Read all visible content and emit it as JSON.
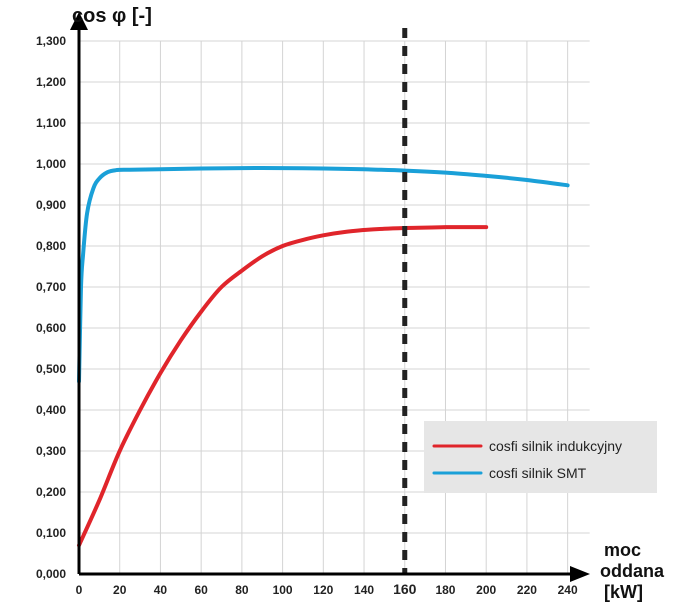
{
  "chart_data": {
    "type": "line",
    "ylabel": "cos φ [-]",
    "xlabel_lines": [
      "moc",
      "oddana",
      "[kW]"
    ],
    "x_ticks": [
      0,
      20,
      40,
      60,
      80,
      100,
      120,
      140,
      160,
      180,
      200,
      220,
      240
    ],
    "x_tick_labels": [
      "0",
      "20",
      "40",
      "60",
      "80",
      "100",
      "120",
      "140",
      "160",
      "180",
      "200",
      "220",
      "240"
    ],
    "y_ticks": [
      0,
      0.1,
      0.2,
      0.3,
      0.4,
      0.5,
      0.6,
      0.7,
      0.8,
      0.9,
      1.0,
      1.1,
      1.2,
      1.3
    ],
    "y_tick_labels": [
      "0,000",
      "0,100",
      "0,200",
      "0,300",
      "0,400",
      "0,500",
      "0,600",
      "0,700",
      "0,800",
      "0,900",
      "1,000",
      "1,100",
      "1,200",
      "1,300"
    ],
    "xlim": [
      0,
      250
    ],
    "ylim": [
      0,
      1.3
    ],
    "grid": true,
    "reference_line": {
      "x": 160,
      "style": "dashed",
      "color": "#222222"
    },
    "highlight_tick": "160",
    "legend_position": "lower-right",
    "series": [
      {
        "name": "cosfi silnik indukcyjny",
        "color": "#e0252b",
        "x": [
          0,
          10,
          20,
          30,
          40,
          50,
          60,
          70,
          80,
          90,
          100,
          110,
          120,
          130,
          140,
          150,
          160,
          170,
          180,
          190,
          200
        ],
        "y": [
          0.07,
          0.18,
          0.3,
          0.4,
          0.49,
          0.57,
          0.64,
          0.7,
          0.74,
          0.775,
          0.8,
          0.815,
          0.826,
          0.834,
          0.839,
          0.842,
          0.844,
          0.845,
          0.846,
          0.846,
          0.846
        ]
      },
      {
        "name": "cosfi silnik SMT",
        "color": "#1aa0d8",
        "x": [
          0,
          1,
          2,
          4,
          7,
          10,
          14,
          18,
          25,
          40,
          60,
          80,
          100,
          120,
          140,
          160,
          180,
          200,
          220,
          240
        ],
        "y": [
          0.47,
          0.7,
          0.78,
          0.88,
          0.94,
          0.965,
          0.98,
          0.985,
          0.986,
          0.987,
          0.989,
          0.99,
          0.99,
          0.989,
          0.987,
          0.984,
          0.979,
          0.971,
          0.961,
          0.948
        ]
      }
    ]
  }
}
